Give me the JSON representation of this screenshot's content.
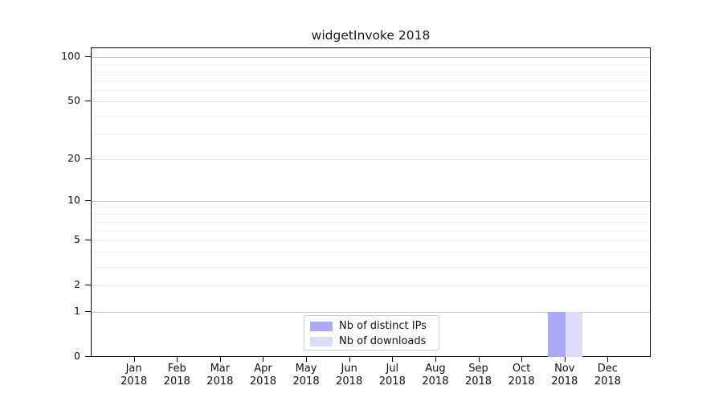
{
  "chart_data": {
    "type": "bar",
    "title": "widgetInvoke 2018",
    "categories": [
      "Jan 2018",
      "Feb 2018",
      "Mar 2018",
      "Apr 2018",
      "May 2018",
      "Jun 2018",
      "Jul 2018",
      "Aug 2018",
      "Sep 2018",
      "Oct 2018",
      "Nov 2018",
      "Dec 2018"
    ],
    "series": [
      {
        "name": "Nb of distinct IPs",
        "color": "#a9a9f6",
        "values": [
          0,
          0,
          0,
          0,
          0,
          0,
          0,
          0,
          0,
          0,
          1,
          0
        ]
      },
      {
        "name": "Nb of downloads",
        "color": "#dcdcf8",
        "values": [
          0,
          0,
          0,
          0,
          0,
          0,
          0,
          0,
          0,
          0,
          1,
          0
        ]
      }
    ],
    "xlabel": "",
    "ylabel": "",
    "yscale": "symlog (log1p)",
    "ylim": [
      0,
      115
    ],
    "y_ticks": [
      0,
      1,
      2,
      5,
      10,
      20,
      50,
      100
    ],
    "y_decade_gridlines": [
      1,
      10,
      100
    ],
    "y_minor_gridlines": [
      3,
      4,
      6,
      7,
      8,
      9,
      30,
      40,
      60,
      70,
      80,
      90
    ],
    "grid": "horizontal",
    "legend_position": "lower center",
    "colors": {
      "decade_grid": "#cbcbcb",
      "major_grid": "#e7e7e7",
      "minor_grid": "#f2f2f2",
      "axis": "#000000",
      "background": "#ffffff"
    }
  }
}
